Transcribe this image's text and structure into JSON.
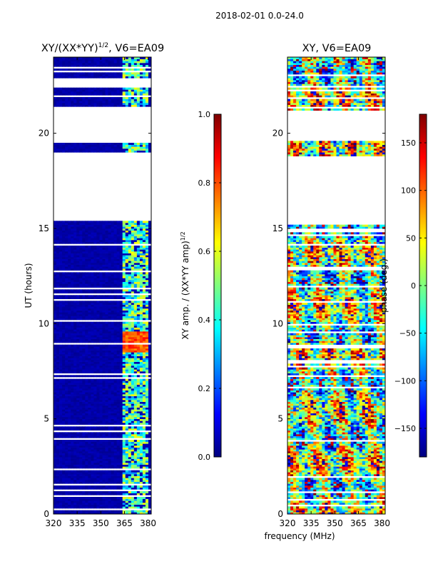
{
  "figure_title": "2018-02-01 0.0-24.0",
  "shared_xlabel": "frequency (MHz)",
  "colors": {
    "jet_stops": [
      "#00007f",
      "#0000ff",
      "#007fff",
      "#00ffff",
      "#7fff7f",
      "#ffff00",
      "#ff7f00",
      "#ff0000",
      "#7f0000"
    ],
    "frame": "#000000",
    "gap": "#ffffff"
  },
  "chart_data": [
    {
      "type": "heatmap",
      "title_main": "XY/(XX*YY)",
      "title_sup": "1/2",
      "title_rest": ", V6=EA09",
      "xlabel": "",
      "ylabel": "UT (hours)",
      "xlim": [
        320,
        382
      ],
      "ylim": [
        0,
        24
      ],
      "xticks": [
        320,
        335,
        350,
        365,
        380
      ],
      "yticks": [
        0,
        5,
        10,
        15,
        20
      ],
      "colorbar": {
        "label_main": "XY amp. / (XX*YY amp)",
        "label_sup": "1/2",
        "range": [
          0.0,
          1.0
        ],
        "ticks": [
          "0.0",
          "0.2",
          "0.4",
          "0.6",
          "0.8",
          "1.0"
        ],
        "tick_values": [
          0.0,
          0.2,
          0.4,
          0.6,
          0.8,
          1.0
        ]
      },
      "data_gaps_hours": [
        [
          15.4,
          19.0
        ],
        [
          19.6,
          21.4
        ],
        [
          22.4,
          22.9
        ]
      ],
      "active_band_mhz": [
        363,
        380
      ],
      "high_amp_block": {
        "hours": [
          8.5,
          9.6
        ],
        "mhz": [
          363,
          380
        ],
        "value": 0.8
      },
      "typical_amp_in_band": 0.45,
      "typical_amp_out_band": 0.02
    },
    {
      "type": "heatmap",
      "title": "XY, V6=EA09",
      "xlabel": "",
      "ylabel": "",
      "xlim": [
        320,
        382
      ],
      "ylim": [
        0,
        24
      ],
      "xticks": [
        320,
        335,
        350,
        365,
        380
      ],
      "yticks": [
        0,
        5,
        10,
        15,
        20
      ],
      "colorbar": {
        "label": "phase (deg.)",
        "range": [
          -180,
          180
        ],
        "ticks": [
          "−150",
          "−100",
          "−50",
          "0",
          "50",
          "100",
          "150"
        ],
        "tick_values": [
          -150,
          -100,
          -50,
          0,
          50,
          100,
          150
        ]
      },
      "data_gaps_hours": [
        [
          15.4,
          18.8
        ],
        [
          19.6,
          21.2
        ]
      ],
      "phase_range_deg": [
        -180,
        180
      ]
    }
  ]
}
